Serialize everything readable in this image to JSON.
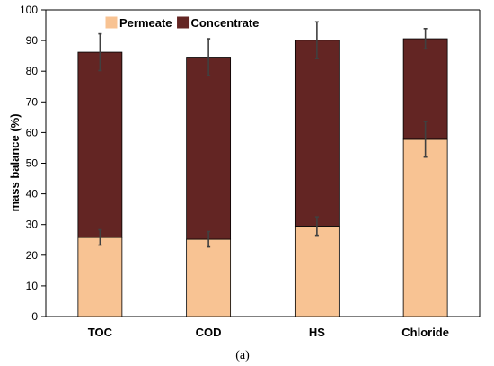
{
  "chart_data": {
    "type": "bar",
    "stacked": true,
    "categories": [
      "TOC",
      "COD",
      "HS",
      "Chloride"
    ],
    "series": [
      {
        "name": "Permeate",
        "color": "#F8C393",
        "values": [
          25.8,
          25.2,
          29.5,
          57.8
        ],
        "error": [
          2.5,
          2.5,
          3.0,
          5.8
        ]
      },
      {
        "name": "Concentrate",
        "color": "#632523",
        "values": [
          60.4,
          59.4,
          60.6,
          32.8
        ],
        "error": [
          6.0,
          6.0,
          6.0,
          3.3
        ]
      }
    ],
    "title": "",
    "xlabel": "",
    "ylabel": "mass balance (%)",
    "ylim": [
      0,
      100
    ],
    "yticks": [
      0,
      10,
      20,
      30,
      40,
      50,
      60,
      70,
      80,
      90,
      100
    ],
    "grid": false,
    "legend_position": "top-left"
  },
  "caption": "(a)"
}
